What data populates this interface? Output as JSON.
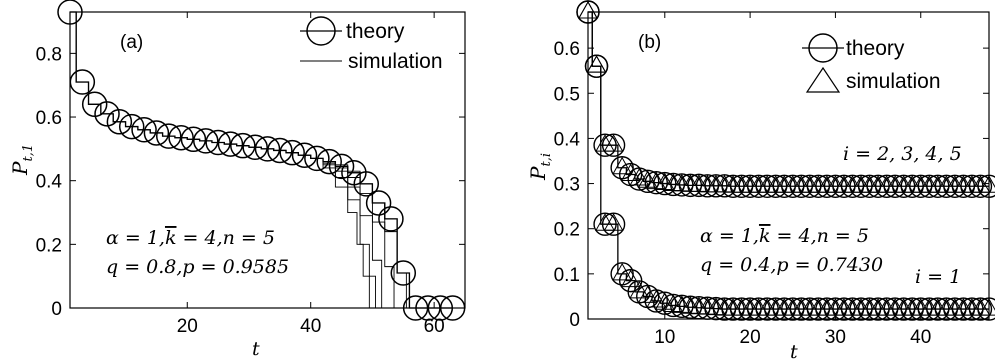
{
  "chart_data": [
    {
      "type": "line",
      "panel_label": "(a)",
      "xlabel": "t",
      "ylabel": "P_{t,1}",
      "xlim": [
        1,
        65
      ],
      "ylim": [
        0,
        0.93
      ],
      "xticks": [
        20,
        40,
        60
      ],
      "yticks": [
        0,
        0.2,
        0.4,
        0.6,
        0.8
      ],
      "ytick_labels": [
        "0",
        "0.2",
        "0.4",
        "0.6",
        "0.8"
      ],
      "legend": {
        "placement": "top-right",
        "entries": [
          "theory",
          "simulation"
        ]
      },
      "annotation": [
        "α = 1,k̄ = 4,n = 5",
        "q = 0.8,p = 0.9585"
      ],
      "series": [
        {
          "name": "theory",
          "marker": "circle",
          "x": [
            1,
            3,
            5,
            7,
            9,
            11,
            13,
            15,
            17,
            19,
            21,
            23,
            25,
            27,
            29,
            31,
            33,
            35,
            37,
            39,
            41,
            43,
            45,
            47,
            49,
            51,
            53,
            55,
            57,
            59,
            61,
            63
          ],
          "y": [
            0.93,
            0.71,
            0.64,
            0.61,
            0.585,
            0.57,
            0.56,
            0.55,
            0.54,
            0.535,
            0.53,
            0.525,
            0.52,
            0.515,
            0.51,
            0.505,
            0.5,
            0.495,
            0.488,
            0.48,
            0.47,
            0.46,
            0.445,
            0.425,
            0.39,
            0.33,
            0.28,
            0.11,
            0,
            0,
            0,
            0
          ]
        },
        {
          "name": "simulation",
          "marker": "line",
          "x": [
            1,
            3,
            5,
            7,
            9,
            11,
            13,
            15,
            17,
            19,
            21,
            23,
            25,
            27,
            29,
            31,
            33,
            35,
            37,
            39,
            41,
            43,
            45,
            47,
            49,
            51,
            53,
            55,
            57,
            59,
            61,
            63
          ],
          "y": [
            0.93,
            0.71,
            0.64,
            0.61,
            0.585,
            0.57,
            0.56,
            0.55,
            0.54,
            0.535,
            0.53,
            0.525,
            0.52,
            0.515,
            0.51,
            0.505,
            0.5,
            0.495,
            0.488,
            0.48,
            0.47,
            0.46,
            0.445,
            0.425,
            0.39,
            0.33,
            0.28,
            0.11,
            0,
            0,
            0,
            0
          ],
          "extra_runs": [
            {
              "x": [
                41,
                43,
                45,
                47,
                48,
                49,
                50
              ],
              "y": [
                0.47,
                0.44,
                0.38,
                0.3,
                0.2,
                0.1,
                0
              ]
            },
            {
              "x": [
                41,
                43,
                45,
                47,
                49,
                50,
                51
              ],
              "y": [
                0.47,
                0.45,
                0.41,
                0.34,
                0.2,
                0.1,
                0
              ]
            },
            {
              "x": [
                41,
                43,
                45,
                47,
                49,
                51,
                52
              ],
              "y": [
                0.47,
                0.455,
                0.43,
                0.38,
                0.29,
                0.15,
                0
              ]
            },
            {
              "x": [
                41,
                43,
                45,
                47,
                49,
                51,
                53,
                54
              ],
              "y": [
                0.47,
                0.46,
                0.44,
                0.41,
                0.36,
                0.27,
                0.13,
                0
              ]
            },
            {
              "x": [
                41,
                43,
                45,
                47,
                49,
                51,
                53,
                55,
                56
              ],
              "y": [
                0.47,
                0.46,
                0.45,
                0.43,
                0.39,
                0.33,
                0.24,
                0.11,
                0
              ]
            }
          ]
        }
      ]
    },
    {
      "type": "line",
      "panel_label": "(b)",
      "xlabel": "t",
      "ylabel": "P_{t,i}",
      "xlim": [
        1,
        48
      ],
      "ylim": [
        0,
        0.68
      ],
      "xticks": [
        10,
        20,
        30,
        40
      ],
      "yticks": [
        0,
        0.1,
        0.2,
        0.3,
        0.4,
        0.5,
        0.6
      ],
      "ytick_labels": [
        "0",
        "0.1",
        "0.2",
        "0.3",
        "0.4",
        "0.5",
        "0.6"
      ],
      "legend": {
        "placement": "top-right",
        "entries": [
          "theory",
          "simulation"
        ]
      },
      "annotation": [
        "α = 1,k̄ = 4,n = 5",
        "q = 0.4,p = 0.7430"
      ],
      "curve_labels": [
        "i = 2, 3, 4, 5",
        "i = 1"
      ],
      "series": [
        {
          "name": "theory",
          "marker": "circle",
          "group": "i = 2, 3, 4, 5",
          "x": [
            1,
            2,
            3,
            4,
            5,
            6,
            7,
            8,
            9,
            10,
            11,
            12,
            13,
            14,
            15,
            16,
            17,
            18,
            19,
            20,
            21,
            22,
            23,
            24,
            25,
            26,
            27,
            28,
            29,
            30,
            31,
            32,
            33,
            34,
            35,
            36,
            37,
            38,
            39,
            40,
            41,
            42,
            43,
            44,
            45,
            46,
            47,
            48
          ],
          "y": [
            0.68,
            0.56,
            0.385,
            0.385,
            0.335,
            0.32,
            0.31,
            0.305,
            0.302,
            0.3,
            0.298,
            0.297,
            0.296,
            0.296,
            0.295,
            0.295,
            0.295,
            0.294,
            0.294,
            0.294,
            0.294,
            0.294,
            0.294,
            0.294,
            0.294,
            0.294,
            0.294,
            0.294,
            0.294,
            0.294,
            0.294,
            0.294,
            0.294,
            0.294,
            0.294,
            0.294,
            0.294,
            0.294,
            0.294,
            0.294,
            0.294,
            0.294,
            0.294,
            0.294,
            0.294,
            0.294,
            0.294,
            0.294
          ]
        },
        {
          "name": "simulation",
          "marker": "triangle",
          "group": "i = 2, 3, 4, 5",
          "x": [
            1,
            2,
            3,
            4,
            5,
            6,
            7,
            8,
            9,
            10,
            11,
            12,
            13,
            14,
            15,
            16,
            17,
            18,
            19,
            20,
            21,
            22,
            23,
            24,
            25,
            26,
            27,
            28,
            29,
            30,
            31,
            32,
            33,
            34,
            35,
            36,
            37,
            38,
            39,
            40,
            41,
            42,
            43,
            44,
            45,
            46,
            47,
            48
          ],
          "y": [
            0.68,
            0.56,
            0.385,
            0.385,
            0.335,
            0.32,
            0.31,
            0.305,
            0.302,
            0.3,
            0.298,
            0.297,
            0.296,
            0.296,
            0.295,
            0.295,
            0.295,
            0.294,
            0.294,
            0.294,
            0.294,
            0.294,
            0.294,
            0.294,
            0.294,
            0.294,
            0.294,
            0.294,
            0.294,
            0.294,
            0.294,
            0.294,
            0.294,
            0.294,
            0.294,
            0.294,
            0.294,
            0.294,
            0.294,
            0.294,
            0.294,
            0.294,
            0.294,
            0.294,
            0.294,
            0.294,
            0.294,
            0.294
          ]
        },
        {
          "name": "theory",
          "marker": "circle",
          "group": "i = 1",
          "x": [
            1,
            2,
            3,
            4,
            5,
            6,
            7,
            8,
            9,
            10,
            11,
            12,
            13,
            14,
            15,
            16,
            17,
            18,
            19,
            20,
            21,
            22,
            23,
            24,
            25,
            26,
            27,
            28,
            29,
            30,
            31,
            32,
            33,
            34,
            35,
            36,
            37,
            38,
            39,
            40,
            41,
            42,
            43,
            44,
            45,
            46,
            47,
            48
          ],
          "y": [
            0.68,
            0.56,
            0.21,
            0.21,
            0.1,
            0.085,
            0.06,
            0.05,
            0.04,
            0.035,
            0.03,
            0.028,
            0.026,
            0.025,
            0.024,
            0.023,
            0.022,
            0.022,
            0.022,
            0.022,
            0.022,
            0.022,
            0.022,
            0.022,
            0.022,
            0.022,
            0.022,
            0.022,
            0.022,
            0.022,
            0.022,
            0.022,
            0.022,
            0.022,
            0.022,
            0.022,
            0.022,
            0.022,
            0.022,
            0.022,
            0.022,
            0.022,
            0.022,
            0.022,
            0.022,
            0.022,
            0.022,
            0.022
          ]
        },
        {
          "name": "simulation",
          "marker": "triangle",
          "group": "i = 1",
          "x": [
            1,
            2,
            3,
            4,
            5,
            6,
            7,
            8,
            9,
            10,
            11,
            12,
            13,
            14,
            15,
            16,
            17,
            18,
            19,
            20,
            21,
            22,
            23,
            24,
            25,
            26,
            27,
            28,
            29,
            30,
            31,
            32,
            33,
            34,
            35,
            36,
            37,
            38,
            39,
            40,
            41,
            42,
            43,
            44,
            45,
            46,
            47,
            48
          ],
          "y": [
            0.68,
            0.56,
            0.21,
            0.21,
            0.1,
            0.085,
            0.06,
            0.05,
            0.04,
            0.035,
            0.03,
            0.028,
            0.026,
            0.025,
            0.024,
            0.023,
            0.022,
            0.022,
            0.022,
            0.022,
            0.022,
            0.022,
            0.022,
            0.022,
            0.022,
            0.022,
            0.022,
            0.022,
            0.022,
            0.022,
            0.022,
            0.022,
            0.022,
            0.022,
            0.022,
            0.022,
            0.022,
            0.022,
            0.022,
            0.022,
            0.022,
            0.022,
            0.022,
            0.022,
            0.022,
            0.022,
            0.022,
            0.022
          ]
        }
      ]
    }
  ]
}
